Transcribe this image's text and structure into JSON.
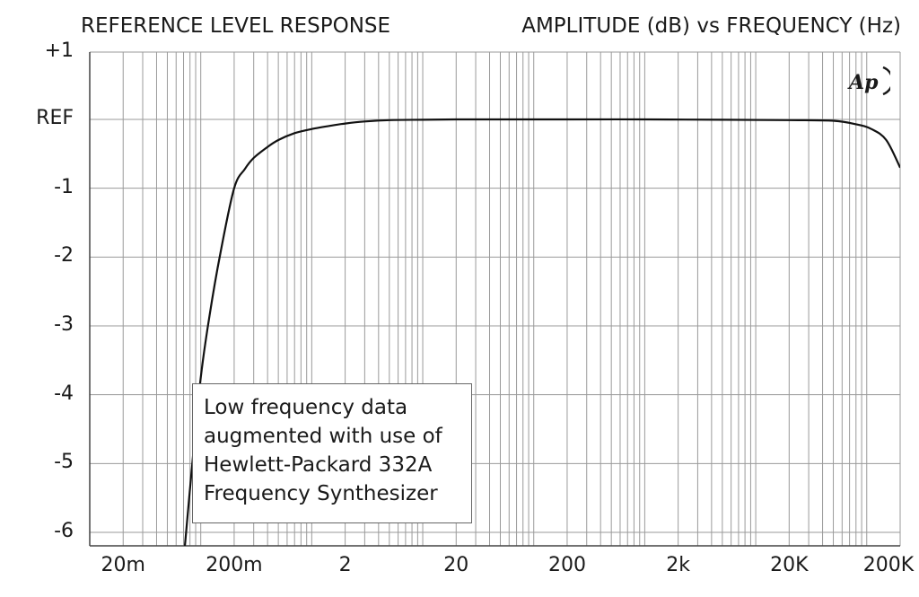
{
  "chart_data": {
    "type": "line",
    "title": "REFERENCE LEVEL RESPONSE",
    "subtitle": "AMPLITUDE (dB) vs FREQUENCY (Hz)",
    "x_scale": "log",
    "xlim": [
      0.01,
      200000
    ],
    "ylim": [
      -6.2,
      1
    ],
    "grid": true,
    "x_tick_values": [
      0.02,
      0.2,
      2,
      20,
      200,
      2000,
      20000,
      200000
    ],
    "x_tick_labels": [
      "20m",
      "200m",
      "2",
      "20",
      "200",
      "2k",
      "20K",
      "200K"
    ],
    "y_tick_values": [
      1,
      0,
      -1,
      -2,
      -3,
      -4,
      -5,
      -6
    ],
    "y_tick_labels": [
      "+1",
      "REF",
      "-1",
      "-2",
      "-3",
      "-4",
      "-5",
      "-6"
    ],
    "series": [
      {
        "x": [
          0.072,
          0.085,
          0.1,
          0.12,
          0.15,
          0.2,
          0.25,
          0.3,
          0.4,
          0.5,
          0.7,
          1,
          1.5,
          2,
          3,
          5,
          10,
          20,
          50,
          200,
          1000,
          5000,
          20000,
          50000,
          80000,
          110000,
          150000,
          200000
        ],
        "y": [
          -6.2,
          -4.9,
          -3.75,
          -2.85,
          -1.95,
          -1.0,
          -0.72,
          -0.56,
          -0.4,
          -0.3,
          -0.2,
          -0.14,
          -0.09,
          -0.06,
          -0.03,
          -0.01,
          -0.005,
          0,
          0,
          0,
          0,
          -0.005,
          -0.01,
          -0.02,
          -0.07,
          -0.14,
          -0.3,
          -0.7
        ]
      }
    ],
    "annotation": {
      "lines": [
        "Low frequency data",
        "augmented with use of",
        "Hewlett-Packard 332A",
        "Frequency Synthesizer"
      ]
    }
  },
  "logo": {
    "text": "Ap",
    "icon": "ap-logo-icon"
  }
}
